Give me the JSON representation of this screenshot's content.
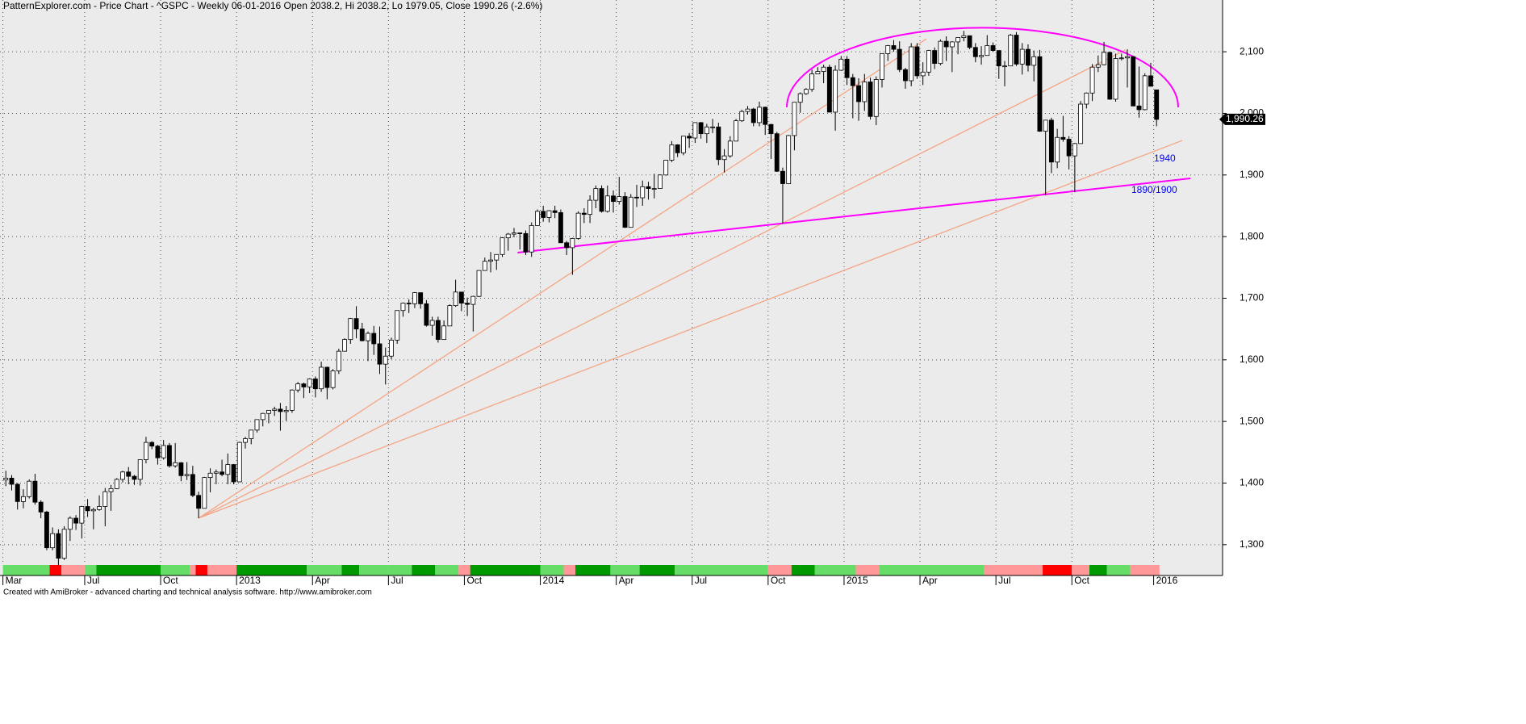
{
  "chart_data": {
    "type": "candlestick",
    "title": "PatternExplorer.com - Price Chart - ^GSPC - Weekly 06-01-2016 Open 2038.2, Hi 2038.2, Lo 1979.05, Close 1990.26 (-2.6%)",
    "footer": "Created with AmiBroker - advanced charting and technical analysis software. http://www.amibroker.com",
    "xlim": [
      -1,
      208.3
    ],
    "xticks": [
      {
        "value": -0.5,
        "label": "Mar"
      },
      {
        "value": 13.5,
        "label": "Jul"
      },
      {
        "value": 26.5,
        "label": "Oct"
      },
      {
        "value": 39.5,
        "label": "2013"
      },
      {
        "value": 52.5,
        "label": "Apr"
      },
      {
        "value": 65.5,
        "label": "Jul"
      },
      {
        "value": 78.5,
        "label": "Oct"
      },
      {
        "value": 91.5,
        "label": "2014"
      },
      {
        "value": 104.5,
        "label": "Apr"
      },
      {
        "value": 117.5,
        "label": "Jul"
      },
      {
        "value": 130.5,
        "label": "Oct"
      },
      {
        "value": 143.5,
        "label": "2015"
      },
      {
        "value": 156.5,
        "label": "Apr"
      },
      {
        "value": 169.5,
        "label": "Jul"
      },
      {
        "value": 182.5,
        "label": "Oct"
      },
      {
        "value": 196.5,
        "label": "2016"
      }
    ],
    "ylim": [
      1250,
      2184
    ],
    "yticks": [
      {
        "value": 1300,
        "label": "1,300"
      },
      {
        "value": 1400,
        "label": "1,400"
      },
      {
        "value": 1500,
        "label": "1,500"
      },
      {
        "value": 1600,
        "label": "1,600"
      },
      {
        "value": 1700,
        "label": "1,700"
      },
      {
        "value": 1800,
        "label": "1,800"
      },
      {
        "value": 1900,
        "label": "1,900"
      },
      {
        "value": 2000,
        "label": "2,000"
      },
      {
        "value": 2100,
        "label": "2,100"
      }
    ],
    "grid": true,
    "up_color": "#ffffff",
    "down_color": "#000000",
    "open": [
      1405,
      1408,
      1398,
      1370,
      1378,
      1403,
      1369,
      1353,
      1295,
      1318,
      1278,
      1325,
      1343,
      1335,
      1362,
      1355,
      1357,
      1362,
      1386,
      1391,
      1406,
      1418,
      1411,
      1406,
      1438,
      1466,
      1460,
      1441,
      1461,
      1428,
      1433,
      1412,
      1414,
      1380,
      1359,
      1409,
      1416,
      1418,
      1414,
      1430,
      1402,
      1466,
      1472,
      1486,
      1503,
      1513,
      1518,
      1520,
      1516,
      1518,
      1551,
      1561,
      1556,
      1569,
      1553,
      1588,
      1555,
      1582,
      1614,
      1633,
      1667,
      1650,
      1631,
      1643,
      1626,
      1593,
      1606,
      1632,
      1680,
      1692,
      1691,
      1709,
      1691,
      1656,
      1664,
      1633,
      1655,
      1688,
      1710,
      1692,
      1690,
      1703,
      1745,
      1760,
      1762,
      1771,
      1798,
      1804,
      1806,
      1805,
      1775,
      1818,
      1841,
      1831,
      1842,
      1839,
      1790,
      1782,
      1797,
      1838,
      1836,
      1859,
      1878,
      1841,
      1866,
      1857,
      1865,
      1815,
      1864,
      1863,
      1881,
      1878,
      1878,
      1900,
      1924,
      1949,
      1936,
      1963,
      1960,
      1985,
      1967,
      1978,
      1978,
      1925,
      1931,
      1955,
      1988,
      2003,
      2007,
      1985,
      2010,
      1982,
      1967,
      1906,
      1886,
      1964,
      2018,
      2032,
      2039,
      2064,
      2068,
      2075,
      2002,
      2070,
      2088,
      2058,
      2045,
      2019,
      2051,
      1995,
      2055,
      2097,
      2110,
      2104,
      2071,
      2053,
      2108,
      2061,
      2067,
      2102,
      2081,
      2117,
      2108,
      2116,
      2123,
      2126,
      2107,
      2092,
      2094,
      2110,
      2102,
      2077,
      2077,
      2127,
      2080,
      2104,
      2078,
      2092,
      1971,
      1989,
      1921,
      1961,
      1958,
      1931,
      1951,
      2015,
      2033,
      2075,
      2079,
      2099,
      2023,
      2089,
      2090,
      2092,
      2012,
      2006,
      2061,
      2038.2
    ],
    "high": [
      1420,
      1413,
      1400,
      1390,
      1406,
      1415,
      1372,
      1355,
      1328,
      1325,
      1330,
      1346,
      1348,
      1363,
      1374,
      1360,
      1380,
      1392,
      1397,
      1408,
      1420,
      1426,
      1413,
      1438,
      1475,
      1468,
      1462,
      1470,
      1465,
      1465,
      1434,
      1434,
      1428,
      1386,
      1410,
      1424,
      1422,
      1438,
      1448,
      1431,
      1467,
      1475,
      1486,
      1503,
      1514,
      1518,
      1524,
      1530,
      1525,
      1552,
      1564,
      1563,
      1570,
      1573,
      1597,
      1589,
      1585,
      1618,
      1635,
      1668,
      1687,
      1660,
      1646,
      1655,
      1654,
      1620,
      1636,
      1680,
      1693,
      1698,
      1710,
      1709,
      1697,
      1670,
      1670,
      1664,
      1690,
      1730,
      1703,
      1701,
      1704,
      1745,
      1766,
      1775,
      1771,
      1799,
      1806,
      1814,
      1806,
      1810,
      1823,
      1844,
      1850,
      1843,
      1850,
      1844,
      1793,
      1798,
      1841,
      1846,
      1867,
      1883,
      1883,
      1883,
      1875,
      1897,
      1872,
      1869,
      1884,
      1891,
      1889,
      1902,
      1901,
      1924,
      1955,
      1950,
      1963,
      1968,
      1985,
      1986,
      1983,
      1991,
      1985,
      1942,
      1963,
      1991,
      2006,
      2012,
      2009,
      2019,
      2011,
      1983,
      1970,
      1912,
      1965,
      2018,
      2034,
      2041,
      2071,
      2075,
      2079,
      2079,
      2078,
      2093,
      2093,
      2064,
      2057,
      2064,
      2058,
      2060,
      2097,
      2111,
      2119,
      2117,
      2074,
      2114,
      2114,
      2083,
      2103,
      2107,
      2120,
      2125,
      2117,
      2123,
      2134,
      2126,
      2114,
      2109,
      2127,
      2115,
      2102,
      2085,
      2129,
      2132,
      2114,
      2112,
      2102,
      2103,
      1989,
      1993,
      1975,
      1996,
      1963,
      1952,
      2020,
      2034,
      2080,
      2094,
      2116,
      2100,
      2097,
      2097,
      2104,
      2093,
      2076,
      2065,
      2082,
      2038.2
    ],
    "low": [
      1395,
      1388,
      1357,
      1359,
      1375,
      1365,
      1343,
      1291,
      1291,
      1267,
      1275,
      1306,
      1324,
      1310,
      1345,
      1325,
      1355,
      1330,
      1355,
      1390,
      1401,
      1398,
      1397,
      1396,
      1432,
      1455,
      1430,
      1438,
      1425,
      1425,
      1403,
      1405,
      1377,
      1343,
      1359,
      1385,
      1398,
      1411,
      1398,
      1398,
      1402,
      1456,
      1463,
      1482,
      1492,
      1497,
      1509,
      1485,
      1501,
      1514,
      1547,
      1538,
      1546,
      1539,
      1548,
      1536,
      1552,
      1577,
      1614,
      1626,
      1635,
      1630,
      1598,
      1608,
      1577,
      1560,
      1601,
      1626,
      1670,
      1676,
      1684,
      1683,
      1654,
      1639,
      1628,
      1634,
      1655,
      1686,
      1679,
      1671,
      1646,
      1702,
      1745,
      1742,
      1746,
      1767,
      1777,
      1799,
      1779,
      1770,
      1767,
      1818,
      1824,
      1823,
      1830,
      1790,
      1770,
      1738,
      1795,
      1822,
      1822,
      1846,
      1839,
      1839,
      1839,
      1852,
      1814,
      1815,
      1848,
      1850,
      1860,
      1862,
      1878,
      1899,
      1921,
      1929,
      1932,
      1944,
      1952,
      1959,
      1952,
      1968,
      1916,
      1904,
      1928,
      1955,
      1986,
      1998,
      1979,
      1979,
      1965,
      1926,
      1905,
      1821,
      1886,
      1940,
      2001,
      2030,
      2035,
      2064,
      2049,
      2002,
      1972,
      2069,
      2046,
      1992,
      1988,
      2004,
      1990,
      1981,
      2042,
      2085,
      2100,
      2067,
      2040,
      2044,
      2056,
      2046,
      2061,
      2072,
      2078,
      2085,
      2067,
      2096,
      2117,
      2104,
      2083,
      2079,
      2094,
      2100,
      2056,
      2044,
      2077,
      2077,
      2063,
      2068,
      2052,
      1970,
      1867,
      1903,
      1911,
      1954,
      1909,
      1872,
      1951,
      2008,
      2020,
      2067,
      2078,
      2022,
      2019,
      2086,
      2042,
      2012,
      1993,
      2005,
      2044,
      1979.05
    ],
    "close": [
      1408,
      1398,
      1370,
      1378,
      1403,
      1369,
      1353,
      1295,
      1318,
      1278,
      1325,
      1343,
      1335,
      1362,
      1355,
      1357,
      1362,
      1386,
      1391,
      1406,
      1418,
      1411,
      1406,
      1438,
      1466,
      1460,
      1441,
      1461,
      1428,
      1433,
      1412,
      1414,
      1380,
      1359,
      1409,
      1416,
      1418,
      1414,
      1430,
      1402,
      1466,
      1472,
      1486,
      1503,
      1513,
      1518,
      1520,
      1516,
      1518,
      1551,
      1561,
      1556,
      1569,
      1553,
      1588,
      1555,
      1582,
      1614,
      1633,
      1667,
      1650,
      1631,
      1643,
      1626,
      1593,
      1606,
      1632,
      1680,
      1692,
      1691,
      1709,
      1691,
      1656,
      1664,
      1633,
      1655,
      1688,
      1710,
      1692,
      1690,
      1703,
      1745,
      1760,
      1762,
      1771,
      1798,
      1804,
      1806,
      1805,
      1775,
      1818,
      1841,
      1831,
      1842,
      1839,
      1790,
      1782,
      1797,
      1838,
      1836,
      1859,
      1878,
      1841,
      1866,
      1857,
      1865,
      1815,
      1864,
      1863,
      1881,
      1878,
      1878,
      1900,
      1924,
      1949,
      1936,
      1963,
      1960,
      1985,
      1967,
      1978,
      1978,
      1925,
      1931,
      1955,
      1988,
      2003,
      2007,
      1985,
      2010,
      1982,
      1967,
      1906,
      1886,
      1964,
      2018,
      2032,
      2039,
      2064,
      2068,
      2075,
      2002,
      2070,
      2088,
      2058,
      2045,
      2019,
      2051,
      1995,
      2055,
      2097,
      2110,
      2104,
      2071,
      2053,
      2108,
      2061,
      2067,
      2102,
      2081,
      2117,
      2108,
      2116,
      2123,
      2126,
      2107,
      2092,
      2094,
      2110,
      2102,
      2077,
      2077,
      2127,
      2080,
      2104,
      2078,
      2092,
      1971,
      1989,
      1921,
      1961,
      1958,
      1931,
      1951,
      2015,
      2033,
      2075,
      2079,
      2099,
      2023,
      2089,
      2090,
      2092,
      2012,
      2006,
      2061,
      2044,
      1990.26
    ],
    "last_price": {
      "value": 1990.26,
      "label": "1,990.26"
    },
    "indicator_strip": [
      {
        "color": "#66dd66",
        "weeks": 8
      },
      {
        "color": "#ff0000",
        "weeks": 2
      },
      {
        "color": "#ff9999",
        "weeks": 4
      },
      {
        "color": "#66dd66",
        "weeks": 2
      },
      {
        "color": "#009900",
        "weeks": 11
      },
      {
        "color": "#66dd66",
        "weeks": 5
      },
      {
        "color": "#ff9999",
        "weeks": 1
      },
      {
        "color": "#ff0000",
        "weeks": 2
      },
      {
        "color": "#ff9999",
        "weeks": 5
      },
      {
        "color": "#009900",
        "weeks": 12
      },
      {
        "color": "#66dd66",
        "weeks": 6
      },
      {
        "color": "#009900",
        "weeks": 3
      },
      {
        "color": "#66dd66",
        "weeks": 5
      },
      {
        "color": "#66dd66",
        "weeks": 4
      },
      {
        "color": "#009900",
        "weeks": 4
      },
      {
        "color": "#66dd66",
        "weeks": 4
      },
      {
        "color": "#ff9999",
        "weeks": 2
      },
      {
        "color": "#009900",
        "weeks": 12
      },
      {
        "color": "#66dd66",
        "weeks": 4
      },
      {
        "color": "#ff9999",
        "weeks": 2
      },
      {
        "color": "#009900",
        "weeks": 6
      },
      {
        "color": "#66dd66",
        "weeks": 5
      },
      {
        "color": "#009900",
        "weeks": 6
      },
      {
        "color": "#66dd66",
        "weeks": 16
      },
      {
        "color": "#ff9999",
        "weeks": 4
      },
      {
        "color": "#009900",
        "weeks": 4
      },
      {
        "color": "#66dd66",
        "weeks": 7
      },
      {
        "color": "#ff9999",
        "weeks": 4
      },
      {
        "color": "#66dd66",
        "weeks": 18
      },
      {
        "color": "#ff9999",
        "weeks": 10
      },
      {
        "color": "#ff0000",
        "weeks": 5
      },
      {
        "color": "#ff9999",
        "weeks": 3
      },
      {
        "color": "#009900",
        "weeks": 3
      },
      {
        "color": "#66dd66",
        "weeks": 4
      },
      {
        "color": "#ff9999",
        "weeks": 5
      }
    ],
    "trendlines": [
      {
        "color": "#f4a484",
        "points": [
          [
            33,
            1343
          ],
          [
            157.6,
            2121
          ]
        ]
      },
      {
        "color": "#f4a484",
        "points": [
          [
            33,
            1343
          ],
          [
            191.7,
            2103
          ]
        ]
      },
      {
        "color": "#f4a484",
        "points": [
          [
            33,
            1343
          ],
          [
            201.4,
            1956
          ]
        ]
      },
      {
        "color": "#ff00ff",
        "points": [
          [
            87.6,
            1774
          ],
          [
            202.8,
            1894.5
          ]
        ]
      }
    ],
    "arc": {
      "color": "#ff00ff",
      "center": [
        167.2,
        2010
      ],
      "radii": [
        33.5,
        129
      ]
    },
    "annotations": [
      {
        "text": "1940",
        "color": "#0000ff"
      },
      {
        "text": "1890/1900",
        "color": "#0000ff"
      }
    ]
  }
}
